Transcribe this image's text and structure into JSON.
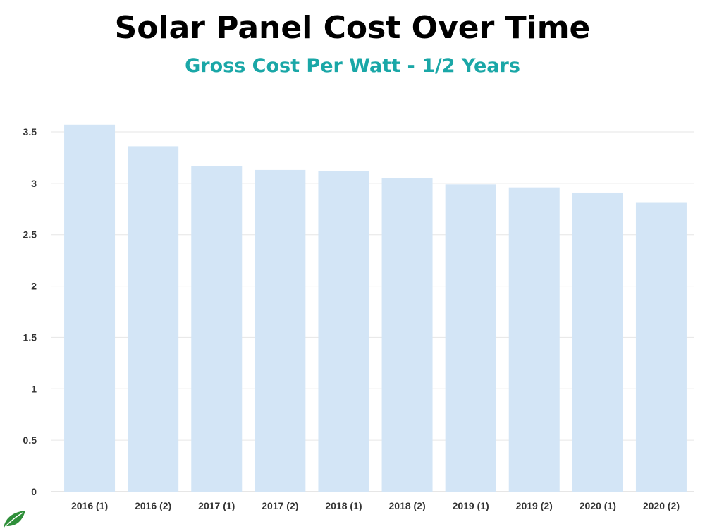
{
  "chart_data": {
    "type": "bar",
    "title": "Solar Panel Cost Over Time",
    "subtitle": "Gross Cost Per Watt - 1/2 Years",
    "categories": [
      "2016 (1)",
      "2016 (2)",
      "2017 (1)",
      "2017 (2)",
      "2018 (1)",
      "2018 (2)",
      "2019 (1)",
      "2019 (2)",
      "2020 (1)",
      "2020 (2)"
    ],
    "values": [
      3.57,
      3.36,
      3.17,
      3.13,
      3.12,
      3.05,
      2.99,
      2.96,
      2.91,
      2.81
    ],
    "xlabel": "",
    "ylabel": "",
    "ylim": [
      0,
      3.5
    ],
    "yticks": [
      "0",
      "0.5",
      "1",
      "1.5",
      "2",
      "2.5",
      "3",
      "3.5"
    ],
    "grid": true,
    "colors": {
      "bar": "#d3e5f6",
      "subtitle": "#1aa7a7",
      "grid": "#e6e6e6",
      "axis": "#cccccc"
    }
  },
  "logo": {
    "icon": "leaf-icon",
    "color": "#2f8f3a"
  }
}
